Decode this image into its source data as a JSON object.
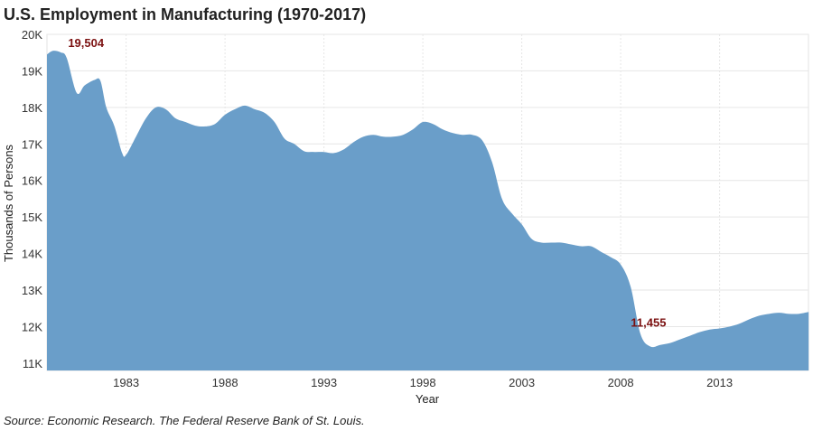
{
  "source": "Source: Economic Research. The Federal Reserve Bank of St. Louis.",
  "chart_data": {
    "type": "area",
    "title": "U.S. Employment in Manufacturing (1970-2017)",
    "xlabel": "Year",
    "ylabel": "Thousands of Persons",
    "x_ticks": [
      1983,
      1988,
      1993,
      1998,
      2003,
      2008,
      2013
    ],
    "y_ticks": [
      "11K",
      "12K",
      "13K",
      "14K",
      "15K",
      "16K",
      "17K",
      "18K",
      "19K",
      "20K"
    ],
    "y_tick_values": [
      11000,
      12000,
      13000,
      14000,
      15000,
      16000,
      17000,
      18000,
      19000,
      20000
    ],
    "xlim": [
      1979.0,
      2017.5
    ],
    "ylim": [
      10800,
      20000
    ],
    "grid": true,
    "color": "#6a9ec9",
    "x": [
      1979.0,
      1979.3,
      1979.7,
      1980.0,
      1980.5,
      1980.9,
      1981.4,
      1981.7,
      1982.0,
      1982.4,
      1982.8,
      1983.0,
      1983.5,
      1984.0,
      1984.5,
      1985.0,
      1985.5,
      1986.0,
      1986.5,
      1987.0,
      1987.5,
      1988.0,
      1988.5,
      1989.0,
      1989.5,
      1990.0,
      1990.5,
      1991.0,
      1991.5,
      1992.0,
      1992.5,
      1993.0,
      1993.5,
      1994.0,
      1994.5,
      1995.0,
      1995.5,
      1996.0,
      1996.5,
      1997.0,
      1997.5,
      1998.0,
      1998.5,
      1999.0,
      1999.5,
      2000.0,
      2000.5,
      2001.0,
      2001.5,
      2002.0,
      2002.5,
      2003.0,
      2003.5,
      2004.0,
      2004.5,
      2005.0,
      2005.5,
      2006.0,
      2006.5,
      2007.0,
      2007.5,
      2008.0,
      2008.5,
      2009.0,
      2009.5,
      2010.0,
      2010.5,
      2011.0,
      2011.5,
      2012.0,
      2012.5,
      2013.0,
      2013.5,
      2014.0,
      2014.5,
      2015.0,
      2015.5,
      2016.0,
      2016.5,
      2017.0,
      2017.5
    ],
    "values": [
      19450,
      19550,
      19504,
      19350,
      18400,
      18600,
      18750,
      18730,
      18000,
      17500,
      16750,
      16700,
      17200,
      17700,
      18000,
      17950,
      17700,
      17600,
      17500,
      17480,
      17550,
      17800,
      17950,
      18050,
      17950,
      17850,
      17600,
      17150,
      17000,
      16800,
      16780,
      16780,
      16750,
      16850,
      17050,
      17200,
      17250,
      17200,
      17200,
      17250,
      17400,
      17600,
      17550,
      17400,
      17300,
      17250,
      17250,
      17100,
      16500,
      15500,
      15100,
      14800,
      14400,
      14300,
      14300,
      14300,
      14250,
      14200,
      14200,
      14050,
      13900,
      13700,
      13100,
      11800,
      11455,
      11500,
      11550,
      11650,
      11750,
      11850,
      11920,
      11950,
      12000,
      12080,
      12200,
      12300,
      12350,
      12380,
      12350,
      12350,
      12400
    ],
    "annotations": [
      {
        "text": "19,504",
        "x": 1979.7,
        "y": 19504
      },
      {
        "text": "11,455",
        "x": 2009.5,
        "y": 11455
      }
    ]
  }
}
